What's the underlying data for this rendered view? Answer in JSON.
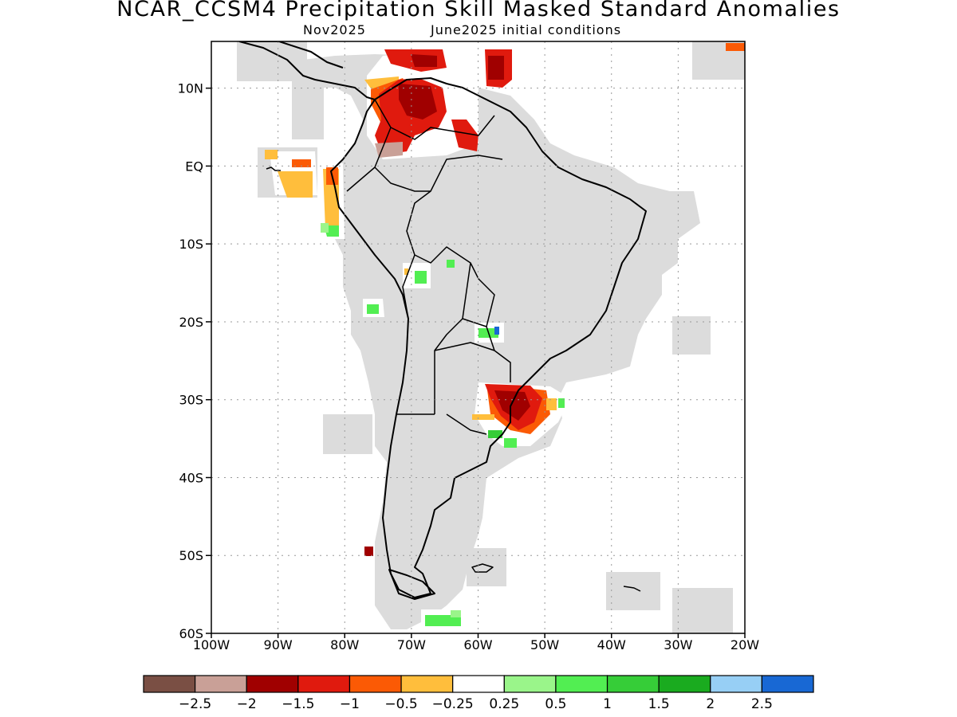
{
  "header": {
    "title": "NCAR_CCSM4 Precipitation Skill Masked Standard Anomalies",
    "month": "Nov2025",
    "init": "June2025 initial conditions"
  },
  "map": {
    "lon_range": [
      -100,
      -20
    ],
    "lat_range": [
      -60,
      16
    ],
    "lat_ticks": [
      {
        "v": 10,
        "label": "10N"
      },
      {
        "v": 0,
        "label": "EQ"
      },
      {
        "v": -10,
        "label": "10S"
      },
      {
        "v": -20,
        "label": "20S"
      },
      {
        "v": -30,
        "label": "30S"
      },
      {
        "v": -40,
        "label": "40S"
      },
      {
        "v": -50,
        "label": "50S"
      },
      {
        "v": -60,
        "label": "60S"
      }
    ],
    "lon_ticks": [
      {
        "v": -100,
        "label": "100W"
      },
      {
        "v": -90,
        "label": "90W"
      },
      {
        "v": -80,
        "label": "80W"
      },
      {
        "v": -70,
        "label": "70W"
      },
      {
        "v": -60,
        "label": "60W"
      },
      {
        "v": -50,
        "label": "50W"
      },
      {
        "v": -40,
        "label": "40W"
      },
      {
        "v": -30,
        "label": "30W"
      },
      {
        "v": -20,
        "label": "20W"
      }
    ],
    "grid": true,
    "mask_color": "#dcdcdc"
  },
  "colorbar": {
    "colors": [
      "#7a4f44",
      "#c9a097",
      "#a00000",
      "#e01a0e",
      "#fb5a05",
      "#ffbe3c",
      "#ffffff",
      "#9af58a",
      "#52ee52",
      "#36cd38",
      "#1aab1f",
      "#97cff5",
      "#1868d4"
    ],
    "labels": [
      "−2.5",
      "−2",
      "−1.5",
      "−1",
      "−0.5",
      "−0.25",
      "0.25",
      "0.5",
      "1",
      "1.5",
      "2",
      "2.5"
    ]
  }
}
